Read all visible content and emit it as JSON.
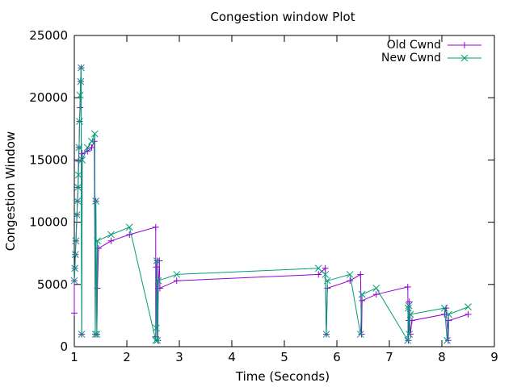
{
  "chart_data": {
    "type": "line",
    "title": "Congestion window Plot",
    "xlabel": "Time (Seconds)",
    "ylabel": "Congestion Window",
    "xlim": [
      1,
      9
    ],
    "ylim": [
      0,
      25000
    ],
    "xticks": [
      1,
      2,
      3,
      4,
      5,
      6,
      7,
      8,
      9
    ],
    "yticks": [
      0,
      5000,
      10000,
      15000,
      20000,
      25000
    ],
    "grid": false,
    "legend_position": "top-right",
    "series": [
      {
        "name": "Old Cwnd",
        "color": "#9400d3",
        "marker": "plus",
        "points": [
          [
            1.0,
            2700
          ],
          [
            1.0,
            5300
          ],
          [
            1.01,
            6300
          ],
          [
            1.02,
            7400
          ],
          [
            1.03,
            8500
          ],
          [
            1.05,
            10600
          ],
          [
            1.06,
            11700
          ],
          [
            1.07,
            12800
          ],
          [
            1.08,
            14900
          ],
          [
            1.09,
            16000
          ],
          [
            1.1,
            18100
          ],
          [
            1.11,
            19200
          ],
          [
            1.12,
            21300
          ],
          [
            1.13,
            22400
          ],
          [
            1.14,
            1000
          ],
          [
            1.15,
            15500
          ],
          [
            1.25,
            15700
          ],
          [
            1.33,
            16000
          ],
          [
            1.38,
            16500
          ],
          [
            1.4,
            1000
          ],
          [
            1.41,
            11700
          ],
          [
            1.43,
            1000
          ],
          [
            1.44,
            4700
          ],
          [
            1.46,
            7900
          ],
          [
            1.7,
            8500
          ],
          [
            2.05,
            9000
          ],
          [
            2.55,
            9600
          ],
          [
            2.55,
            800
          ],
          [
            2.56,
            6400
          ],
          [
            2.58,
            6900
          ],
          [
            2.59,
            500
          ],
          [
            2.6,
            4700
          ],
          [
            2.62,
            6900
          ],
          [
            2.63,
            4700
          ],
          [
            2.95,
            5300
          ],
          [
            5.65,
            5800
          ],
          [
            5.78,
            6300
          ],
          [
            5.8,
            1000
          ],
          [
            5.82,
            4700
          ],
          [
            6.25,
            5300
          ],
          [
            6.45,
            5800
          ],
          [
            6.47,
            1000
          ],
          [
            6.48,
            3700
          ],
          [
            6.75,
            4200
          ],
          [
            7.35,
            4800
          ],
          [
            7.36,
            500
          ],
          [
            7.37,
            2100
          ],
          [
            7.38,
            3600
          ],
          [
            7.4,
            1000
          ],
          [
            7.43,
            2100
          ],
          [
            8.05,
            2600
          ],
          [
            8.08,
            3100
          ],
          [
            8.12,
            500
          ],
          [
            8.13,
            2100
          ],
          [
            8.5,
            2600
          ]
        ]
      },
      {
        "name": "New Cwnd",
        "color": "#009e73",
        "marker": "cross",
        "points": [
          [
            1.0,
            5300
          ],
          [
            1.01,
            6300
          ],
          [
            1.02,
            7400
          ],
          [
            1.03,
            8500
          ],
          [
            1.05,
            10600
          ],
          [
            1.06,
            11700
          ],
          [
            1.07,
            12800
          ],
          [
            1.08,
            13800
          ],
          [
            1.09,
            16000
          ],
          [
            1.1,
            18100
          ],
          [
            1.11,
            20200
          ],
          [
            1.12,
            21300
          ],
          [
            1.13,
            22400
          ],
          [
            1.14,
            1000
          ],
          [
            1.15,
            15000
          ],
          [
            1.25,
            16000
          ],
          [
            1.33,
            16500
          ],
          [
            1.39,
            17100
          ],
          [
            1.4,
            1000
          ],
          [
            1.41,
            11700
          ],
          [
            1.43,
            1000
          ],
          [
            1.44,
            8500
          ],
          [
            1.7,
            9000
          ],
          [
            2.05,
            9600
          ],
          [
            2.55,
            500
          ],
          [
            2.56,
            1500
          ],
          [
            2.57,
            6900
          ],
          [
            2.58,
            500
          ],
          [
            2.6,
            5300
          ],
          [
            2.95,
            5800
          ],
          [
            5.65,
            6300
          ],
          [
            5.78,
            5800
          ],
          [
            5.8,
            1000
          ],
          [
            5.82,
            5300
          ],
          [
            6.25,
            5800
          ],
          [
            6.45,
            1000
          ],
          [
            6.48,
            4200
          ],
          [
            6.75,
            4700
          ],
          [
            7.35,
            500
          ],
          [
            7.36,
            3100
          ],
          [
            7.37,
            3300
          ],
          [
            7.38,
            1000
          ],
          [
            7.4,
            2600
          ],
          [
            8.05,
            3100
          ],
          [
            8.1,
            500
          ],
          [
            8.13,
            2600
          ],
          [
            8.5,
            3200
          ]
        ]
      }
    ]
  }
}
